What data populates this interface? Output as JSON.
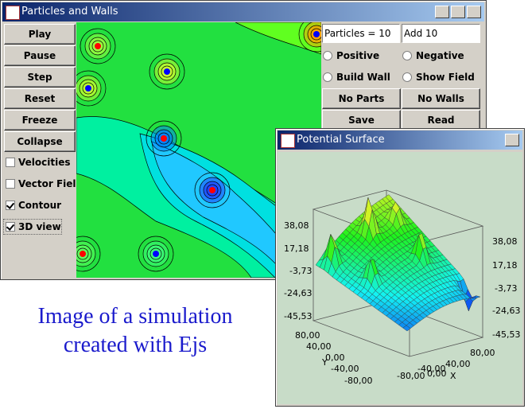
{
  "main_window": {
    "title": "Particles and Walls",
    "buttons": [
      "Play",
      "Pause",
      "Step",
      "Reset",
      "Freeze",
      "Collapse"
    ],
    "checkboxes": [
      {
        "label": "Velocities",
        "checked": false
      },
      {
        "label": "Vector Field",
        "checked": false
      },
      {
        "label": "Contour",
        "checked": true
      },
      {
        "label": "3D view",
        "checked": true
      }
    ],
    "particles_field": "Particles = 10",
    "add_field": "Add 10",
    "radios": [
      "Positive",
      "Negative",
      "Build Wall",
      "Show Field"
    ],
    "action_buttons": [
      "No Parts",
      "No Walls",
      "Save",
      "Read"
    ]
  },
  "surface_window": {
    "title": "Potential Surface",
    "z_ticks_left": [
      "38,08",
      "17,18",
      "-3,73",
      "-24,63",
      "-45,53"
    ],
    "z_ticks_right": [
      "38,08",
      "17,18",
      "-3,73",
      "-24,63",
      "-45,53"
    ],
    "y_ticks": [
      "80,00",
      "40,00",
      "0,00",
      "-40,00",
      "-80,00"
    ],
    "y_label": "Y",
    "x_ticks": [
      "80,00",
      "40,00",
      "0,00",
      "-40,00",
      "-80,00"
    ],
    "x_label": "X"
  },
  "caption": [
    "Image of a simulation",
    "created with Ejs"
  ]
}
